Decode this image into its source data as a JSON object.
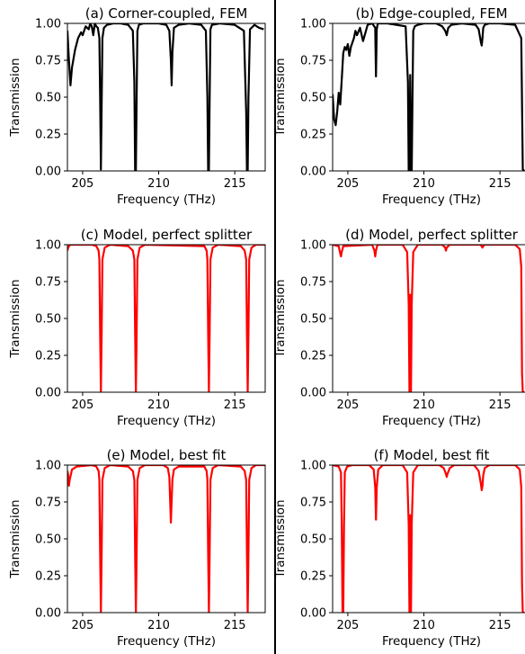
{
  "separator_color": "#000000",
  "chart_data": [
    {
      "type": "line",
      "title": "(a) Corner-coupled, FEM",
      "xlabel": "Frequency (THz)",
      "ylabel": "Transmission",
      "xlim": [
        204.0,
        217.0
      ],
      "ylim": [
        0.0,
        1.0
      ],
      "xticks": [
        205,
        210,
        215
      ],
      "yticks": [
        0.0,
        0.25,
        0.5,
        0.75,
        1.0
      ],
      "ytick_labels": [
        "0.00",
        "0.25",
        "0.50",
        "0.75",
        "1.00"
      ],
      "grid": false,
      "series": [
        {
          "color": "#000000",
          "x": [
            204.0,
            204.1,
            204.2,
            204.3,
            204.5,
            204.7,
            204.9,
            205.0,
            205.2,
            205.4,
            205.5,
            205.6,
            205.7,
            205.8,
            205.9,
            206.0,
            206.1,
            206.15,
            206.2,
            206.25,
            206.3,
            206.4,
            206.6,
            207.0,
            207.5,
            208.0,
            208.3,
            208.4,
            208.45,
            208.5,
            208.55,
            208.6,
            208.7,
            209.0,
            209.5,
            210.0,
            210.5,
            210.7,
            210.8,
            210.85,
            210.9,
            211.0,
            211.3,
            212.0,
            212.8,
            213.1,
            213.2,
            213.25,
            213.3,
            213.35,
            213.4,
            213.5,
            214.0,
            215.0,
            215.6,
            215.75,
            215.8,
            215.85,
            215.9,
            216.0,
            216.3,
            216.6,
            216.9
          ],
          "y": [
            0.95,
            0.75,
            0.58,
            0.7,
            0.82,
            0.9,
            0.94,
            0.92,
            0.98,
            0.96,
            1.0,
            0.98,
            0.92,
            1.0,
            0.98,
            0.97,
            0.9,
            0.5,
            0.01,
            0.45,
            0.9,
            0.97,
            0.99,
            1.0,
            1.0,
            0.99,
            0.95,
            0.6,
            0.0,
            0.0,
            0.5,
            0.95,
            0.99,
            1.0,
            1.0,
            1.0,
            0.99,
            0.95,
            0.75,
            0.58,
            0.8,
            0.97,
            0.99,
            1.0,
            0.99,
            0.95,
            0.5,
            0.0,
            0.0,
            0.5,
            0.96,
            0.99,
            1.0,
            0.99,
            0.95,
            0.4,
            0.0,
            0.0,
            0.5,
            0.96,
            0.99,
            0.97,
            0.96
          ]
        }
      ]
    },
    {
      "type": "line",
      "title": "(b) Edge-coupled, FEM",
      "xlabel": "Frequency (THz)",
      "ylabel": "Transmission",
      "xlim": [
        204.0,
        217.0
      ],
      "ylim": [
        0.0,
        1.0
      ],
      "xticks": [
        205,
        210,
        215
      ],
      "yticks": [
        0.0,
        0.25,
        0.5,
        0.75,
        1.0
      ],
      "ytick_labels": [
        "0.00",
        "0.25",
        "0.50",
        "0.75",
        "1.00"
      ],
      "grid": false,
      "series": [
        {
          "color": "#000000",
          "x": [
            204.0,
            204.1,
            204.2,
            204.3,
            204.4,
            204.5,
            204.6,
            204.7,
            204.8,
            204.9,
            205.0,
            205.1,
            205.2,
            205.4,
            205.5,
            205.6,
            205.8,
            206.0,
            206.3,
            206.6,
            206.8,
            206.85,
            206.9,
            206.95,
            207.0,
            207.2,
            207.6,
            208.2,
            208.8,
            208.95,
            209.0,
            209.05,
            209.1,
            209.15,
            209.2,
            209.25,
            209.3,
            209.4,
            209.6,
            210.0,
            210.8,
            211.2,
            211.4,
            211.5,
            211.6,
            211.8,
            212.5,
            213.4,
            213.6,
            213.75,
            213.8,
            213.85,
            213.9,
            214.0,
            214.3,
            215.0,
            216.0,
            216.4,
            216.5,
            216.6
          ],
          "y": [
            0.52,
            0.35,
            0.31,
            0.4,
            0.53,
            0.45,
            0.62,
            0.8,
            0.84,
            0.82,
            0.86,
            0.78,
            0.84,
            0.9,
            0.95,
            0.92,
            0.97,
            0.88,
            0.99,
            1.0,
            0.97,
            0.64,
            0.96,
            0.99,
            1.0,
            1.0,
            1.0,
            0.99,
            0.98,
            0.6,
            0.0,
            0.0,
            0.65,
            0.0,
            0.0,
            0.5,
            0.95,
            0.98,
            0.99,
            1.0,
            1.0,
            0.98,
            0.95,
            0.92,
            0.97,
            0.99,
            1.0,
            0.99,
            0.96,
            0.87,
            0.85,
            0.9,
            0.97,
            0.99,
            1.0,
            1.0,
            0.99,
            0.9,
            0.01,
            0.0
          ]
        }
      ]
    },
    {
      "type": "line",
      "title": "(c) Model, perfect splitter",
      "xlabel": "Frequency (THz)",
      "ylabel": "Transmission",
      "xlim": [
        204.0,
        217.0
      ],
      "ylim": [
        0.0,
        1.0
      ],
      "xticks": [
        205,
        210,
        215
      ],
      "yticks": [
        0.0,
        0.25,
        0.5,
        0.75,
        1.0
      ],
      "ytick_labels": [
        "0.00",
        "0.25",
        "0.50",
        "0.75",
        "1.00"
      ],
      "grid": false,
      "series": [
        {
          "color": "#ff0000",
          "x": [
            204.0,
            204.05,
            204.1,
            204.2,
            205.6,
            205.9,
            206.05,
            206.1,
            206.15,
            206.2,
            206.25,
            206.3,
            206.45,
            206.8,
            208.0,
            208.3,
            208.4,
            208.45,
            208.5,
            208.55,
            208.6,
            208.75,
            209.1,
            213.0,
            213.15,
            213.2,
            213.25,
            213.3,
            213.35,
            213.4,
            213.55,
            213.9,
            215.4,
            215.65,
            215.75,
            215.8,
            215.85,
            215.9,
            215.95,
            216.1,
            216.4,
            217.0
          ],
          "y": [
            0.96,
            0.98,
            0.99,
            1.0,
            1.0,
            0.99,
            0.96,
            0.9,
            0.4,
            0.0,
            0.4,
            0.9,
            0.98,
            1.0,
            0.99,
            0.96,
            0.9,
            0.4,
            0.0,
            0.4,
            0.9,
            0.98,
            1.0,
            0.99,
            0.96,
            0.9,
            0.4,
            0.0,
            0.4,
            0.9,
            0.98,
            1.0,
            0.99,
            0.96,
            0.9,
            0.4,
            0.0,
            0.4,
            0.9,
            0.98,
            1.0,
            1.0
          ]
        }
      ]
    },
    {
      "type": "line",
      "title": "(d) Model, perfect splitter",
      "xlabel": "Frequency (THz)",
      "ylabel": "Transmission",
      "xlim": [
        204.0,
        217.0
      ],
      "ylim": [
        0.0,
        1.0
      ],
      "xticks": [
        205,
        210,
        215
      ],
      "yticks": [
        0.0,
        0.25,
        0.5,
        0.75,
        1.0
      ],
      "ytick_labels": [
        "0.00",
        "0.25",
        "0.50",
        "0.75",
        "1.00"
      ],
      "grid": false,
      "series": [
        {
          "color": "#ff0000",
          "x": [
            204.0,
            204.4,
            204.5,
            204.55,
            204.6,
            204.7,
            206.6,
            206.75,
            206.8,
            206.85,
            206.95,
            208.6,
            208.9,
            209.0,
            209.05,
            209.1,
            209.15,
            209.2,
            209.3,
            209.6,
            211.2,
            211.4,
            211.45,
            211.5,
            211.7,
            213.7,
            213.8,
            213.85,
            213.9,
            214.0,
            216.0,
            216.3,
            216.4,
            216.45,
            216.5,
            216.55,
            216.6
          ],
          "y": [
            1.0,
            0.99,
            0.94,
            0.92,
            0.95,
            0.99,
            1.0,
            0.96,
            0.92,
            0.96,
            1.0,
            1.0,
            0.95,
            0.6,
            0.0,
            0.66,
            0.0,
            0.6,
            0.95,
            1.0,
            1.0,
            0.98,
            0.96,
            0.98,
            1.0,
            1.0,
            0.99,
            0.98,
            0.99,
            1.0,
            1.0,
            0.97,
            0.85,
            0.13,
            0.0,
            0.0,
            0.0
          ]
        }
      ]
    },
    {
      "type": "line",
      "title": "(e) Model, best fit",
      "xlabel": "Frequency (THz)",
      "ylabel": "Transmission",
      "xlim": [
        204.0,
        217.0
      ],
      "ylim": [
        0.0,
        1.0
      ],
      "xticks": [
        205,
        210,
        215
      ],
      "yticks": [
        0.0,
        0.25,
        0.5,
        0.75,
        1.0
      ],
      "ytick_labels": [
        "0.00",
        "0.25",
        "0.50",
        "0.75",
        "1.00"
      ],
      "grid": false,
      "series": [
        {
          "color": "#ff0000",
          "x": [
            204.0,
            204.05,
            204.1,
            204.15,
            204.3,
            204.6,
            205.6,
            205.9,
            206.05,
            206.1,
            206.15,
            206.2,
            206.25,
            206.3,
            206.45,
            206.8,
            208.0,
            208.3,
            208.4,
            208.45,
            208.5,
            208.55,
            208.6,
            208.75,
            209.1,
            210.3,
            210.6,
            210.7,
            210.8,
            210.9,
            211.0,
            211.3,
            213.0,
            213.15,
            213.2,
            213.25,
            213.3,
            213.35,
            213.4,
            213.55,
            213.9,
            215.4,
            215.65,
            215.75,
            215.8,
            215.85,
            215.9,
            215.95,
            216.1,
            216.4,
            217.0
          ],
          "y": [
            0.96,
            0.93,
            0.86,
            0.9,
            0.97,
            0.99,
            1.0,
            0.99,
            0.96,
            0.9,
            0.4,
            0.0,
            0.4,
            0.9,
            0.98,
            1.0,
            0.99,
            0.96,
            0.9,
            0.4,
            0.0,
            0.4,
            0.9,
            0.98,
            1.0,
            1.0,
            0.98,
            0.92,
            0.61,
            0.9,
            0.97,
            0.99,
            0.99,
            0.96,
            0.9,
            0.4,
            0.0,
            0.4,
            0.9,
            0.98,
            1.0,
            0.99,
            0.96,
            0.9,
            0.4,
            0.0,
            0.4,
            0.9,
            0.98,
            1.0,
            1.0
          ]
        }
      ]
    },
    {
      "type": "line",
      "title": "(f) Model, best fit",
      "xlabel": "Frequency (THz)",
      "ylabel": "Transmission",
      "xlim": [
        204.0,
        217.0
      ],
      "ylim": [
        0.0,
        1.0
      ],
      "xticks": [
        205,
        210,
        215
      ],
      "yticks": [
        0.0,
        0.25,
        0.5,
        0.75,
        1.0
      ],
      "ytick_labels": [
        "0.00",
        "0.25",
        "0.50",
        "0.75",
        "1.00"
      ],
      "grid": false,
      "series": [
        {
          "color": "#ff0000",
          "x": [
            204.0,
            204.4,
            204.55,
            204.6,
            204.65,
            204.7,
            204.75,
            204.8,
            204.95,
            205.3,
            206.4,
            206.7,
            206.8,
            206.85,
            206.9,
            207.0,
            207.3,
            208.6,
            208.9,
            209.0,
            209.05,
            209.1,
            209.15,
            209.2,
            209.3,
            209.6,
            211.0,
            211.3,
            211.45,
            211.5,
            211.55,
            211.7,
            212.0,
            213.3,
            213.6,
            213.75,
            213.8,
            213.85,
            213.9,
            214.0,
            214.3,
            216.0,
            216.3,
            216.4,
            216.45,
            216.5,
            216.55,
            216.6
          ],
          "y": [
            1.0,
            0.99,
            0.95,
            0.6,
            0.0,
            0.0,
            0.6,
            0.95,
            0.99,
            1.0,
            1.0,
            0.97,
            0.85,
            0.63,
            0.85,
            0.97,
            1.0,
            1.0,
            0.95,
            0.6,
            0.0,
            0.66,
            0.0,
            0.6,
            0.95,
            1.0,
            1.0,
            0.98,
            0.94,
            0.92,
            0.94,
            0.98,
            1.0,
            1.0,
            0.96,
            0.87,
            0.83,
            0.86,
            0.93,
            0.98,
            1.0,
            1.0,
            0.97,
            0.85,
            0.2,
            0.0,
            0.0,
            0.0
          ]
        }
      ]
    }
  ]
}
